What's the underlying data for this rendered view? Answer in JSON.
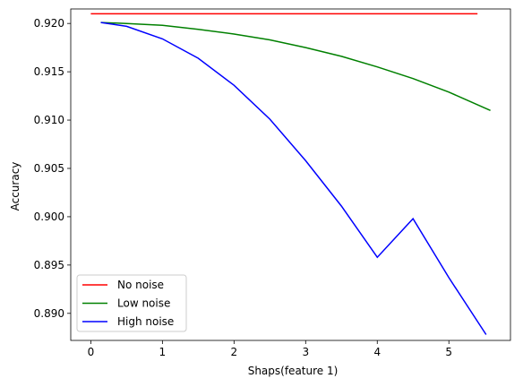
{
  "chart_data": {
    "type": "line",
    "title": "",
    "xlabel": "Shaps(feature 1)",
    "ylabel": "Accuracy",
    "xlim": [
      -0.28,
      5.86
    ],
    "ylim": [
      0.8872,
      0.9215
    ],
    "xticks": [
      0,
      1,
      2,
      3,
      4,
      5
    ],
    "xtick_labels": [
      "0",
      "1",
      "2",
      "3",
      "4",
      "5"
    ],
    "yticks": [
      0.89,
      0.895,
      0.9,
      0.905,
      0.91,
      0.915,
      0.92
    ],
    "ytick_labels": [
      "0.890",
      "0.895",
      "0.900",
      "0.905",
      "0.910",
      "0.915",
      "0.920"
    ],
    "grid": false,
    "legend_position": "lower-left",
    "series": [
      {
        "name": "No noise",
        "color": "#ff0000",
        "x": [
          0.0,
          1.0,
          2.0,
          3.0,
          4.0,
          5.0,
          5.4
        ],
        "y": [
          0.921,
          0.921,
          0.921,
          0.921,
          0.921,
          0.921,
          0.921
        ]
      },
      {
        "name": "Low noise",
        "color": "#008000",
        "x": [
          0.14,
          0.5,
          1.0,
          1.5,
          2.0,
          2.5,
          3.0,
          3.5,
          4.0,
          4.5,
          5.0,
          5.58
        ],
        "y": [
          0.9201,
          0.92,
          0.9198,
          0.9194,
          0.9189,
          0.9183,
          0.9175,
          0.9166,
          0.9155,
          0.9143,
          0.9129,
          0.911
        ]
      },
      {
        "name": "High noise",
        "color": "#0000ff",
        "x": [
          0.14,
          0.5,
          1.0,
          1.5,
          2.0,
          2.5,
          3.0,
          3.5,
          4.0,
          4.5,
          5.0,
          5.52
        ],
        "y": [
          0.9201,
          0.9197,
          0.9184,
          0.9164,
          0.9136,
          0.9101,
          0.9058,
          0.9011,
          0.8958,
          0.8998,
          0.8937,
          0.8878
        ]
      }
    ]
  }
}
